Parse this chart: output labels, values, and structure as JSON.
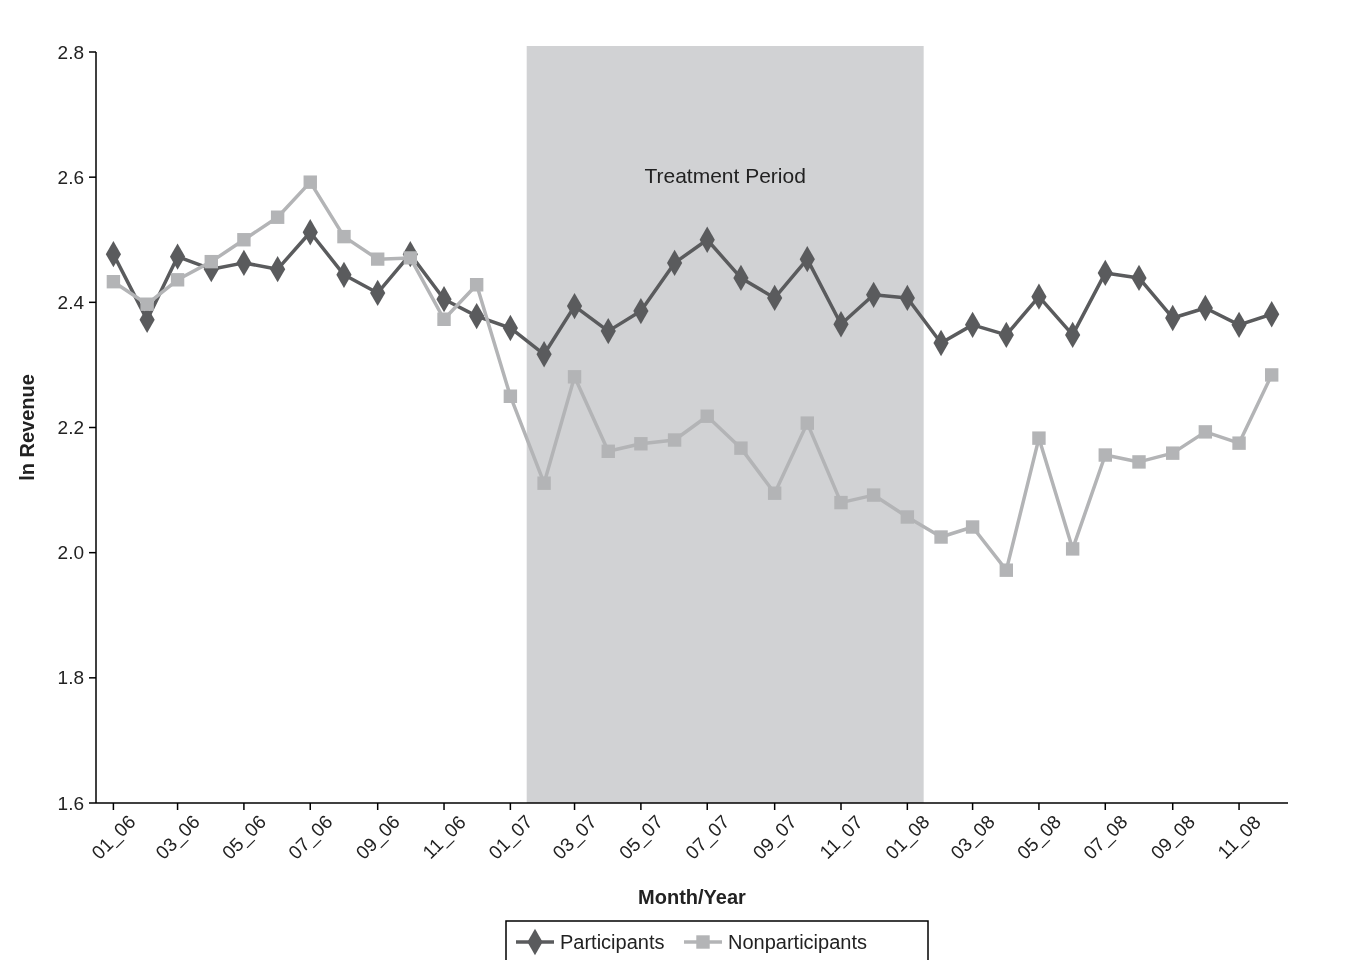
{
  "chart_data": {
    "type": "line",
    "xlabel": "Month/Year",
    "ylabel": "ln Revenue",
    "x": [
      "2006-01",
      "2006-02",
      "2006-03",
      "2006-04",
      "2006-05",
      "2006-06",
      "2006-07",
      "2006-08",
      "2006-09",
      "2006-10",
      "2006-11",
      "2006-12",
      "2007-01",
      "2007-02",
      "2007-03",
      "2007-04",
      "2007-05",
      "2007-06",
      "2007-07",
      "2007-08",
      "2007-09",
      "2007-10",
      "2007-11",
      "2007-12",
      "2008-01",
      "2008-02",
      "2008-03",
      "2008-04",
      "2008-05",
      "2008-06",
      "2008-07",
      "2008-08",
      "2008-09",
      "2008-10",
      "2008-11",
      "2008-12"
    ],
    "series": [
      {
        "name": "Participants",
        "color": "#5a5b5d",
        "marker": "diamond",
        "values": [
          2.477,
          2.372,
          2.473,
          2.453,
          2.463,
          2.453,
          2.512,
          2.444,
          2.415,
          2.477,
          2.405,
          2.378,
          2.359,
          2.317,
          2.394,
          2.354,
          2.386,
          2.463,
          2.5,
          2.439,
          2.407,
          2.469,
          2.365,
          2.412,
          2.407,
          2.335,
          2.364,
          2.348,
          2.409,
          2.348,
          2.447,
          2.439,
          2.375,
          2.391,
          2.364,
          2.381
        ]
      },
      {
        "name": "Nonparticipants",
        "color": "#b3b4b6",
        "marker": "square",
        "values": [
          2.433,
          2.397,
          2.436,
          2.465,
          2.5,
          2.536,
          2.592,
          2.505,
          2.469,
          2.471,
          2.373,
          2.428,
          2.25,
          2.111,
          2.281,
          2.162,
          2.174,
          2.18,
          2.218,
          2.167,
          2.095,
          2.207,
          2.08,
          2.092,
          2.057,
          2.025,
          2.041,
          1.972,
          2.183,
          2.006,
          2.156,
          2.145,
          2.159,
          2.193,
          2.175,
          2.284
        ]
      }
    ],
    "xlim": [
      "2005-12-16",
      "2008-12-16"
    ],
    "xticks": [
      {
        "value": "2006-01",
        "label": "01_06"
      },
      {
        "value": "2006-03",
        "label": "03_06"
      },
      {
        "value": "2006-05",
        "label": "05_06"
      },
      {
        "value": "2006-07",
        "label": "07_06"
      },
      {
        "value": "2006-09",
        "label": "09_06"
      },
      {
        "value": "2006-11",
        "label": "11_06"
      },
      {
        "value": "2007-01",
        "label": "01_07"
      },
      {
        "value": "2007-03",
        "label": "03_07"
      },
      {
        "value": "2007-05",
        "label": "05_07"
      },
      {
        "value": "2007-07",
        "label": "07_07"
      },
      {
        "value": "2007-09",
        "label": "09_07"
      },
      {
        "value": "2007-11",
        "label": "11_07"
      },
      {
        "value": "2008-01",
        "label": "01_08"
      },
      {
        "value": "2008-03",
        "label": "03_08"
      },
      {
        "value": "2008-05",
        "label": "05_08"
      },
      {
        "value": "2008-07",
        "label": "07_08"
      },
      {
        "value": "2008-09",
        "label": "09_08"
      },
      {
        "value": "2008-11",
        "label": "11_08"
      }
    ],
    "ylim": [
      1.6,
      2.8
    ],
    "yticks": [
      1.6,
      1.8,
      {
        "value": 2,
        "label": "2.0"
      },
      2.2,
      2.4,
      2.6,
      2.8
    ],
    "bands": [
      {
        "axis": "x",
        "from": "2007-01-16",
        "to": "2008-01-16",
        "label": "Treatment Period",
        "color": "#d1d2d4"
      }
    ],
    "legend": "bottom",
    "line_style": "solid"
  }
}
